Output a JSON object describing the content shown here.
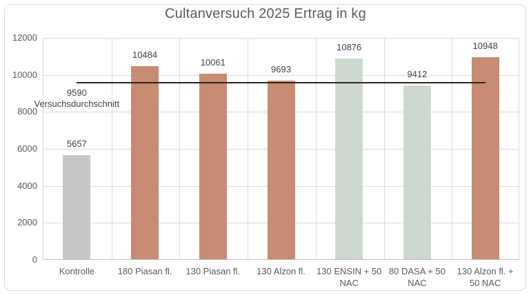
{
  "chart_data": {
    "type": "bar",
    "title": "Cultanversuch 2025 Ertrag in kg",
    "categories": [
      "Kontrolle",
      "180 Piasan fl.",
      "130 Piasan fl.",
      "130 Alzon fl.",
      "130 ENSIN + 50 NAC",
      "80 DASA + 50 NAC",
      "130 Alzon fl. + 50 NAC"
    ],
    "values": [
      5657,
      10484,
      10061,
      9693,
      10876,
      9412,
      10948
    ],
    "value_labels": [
      "5657",
      "10484",
      "10061",
      "9693",
      "10876",
      "9412",
      "10948"
    ],
    "bar_colors": [
      "#c7c7c7",
      "#c78c71",
      "#c78c71",
      "#c78c71",
      "#ccd8cd",
      "#ccd8cd",
      "#c78c71"
    ],
    "average_line": {
      "value": 9590,
      "value_label": "9590",
      "name": "Versuchsdurchschnitt",
      "color": "#262626"
    },
    "xlabel": "",
    "ylabel": "",
    "ylim": [
      0,
      12000
    ],
    "ytick_values": [
      12000,
      10000,
      8000,
      6000,
      4000,
      2000,
      0
    ],
    "ytick_labels": [
      "12000",
      "10000",
      "8000",
      "6000",
      "4000",
      "2000",
      "0"
    ],
    "grid": true,
    "legend": "none",
    "colors": {
      "grid": "#d9d9d9",
      "axis_line": "#bfbfbf",
      "axis_text": "#595959",
      "data_label": "#404040",
      "title_text": "#595959",
      "frame_border": "#d9d9d9",
      "plot_bg": "#ffffff"
    }
  }
}
